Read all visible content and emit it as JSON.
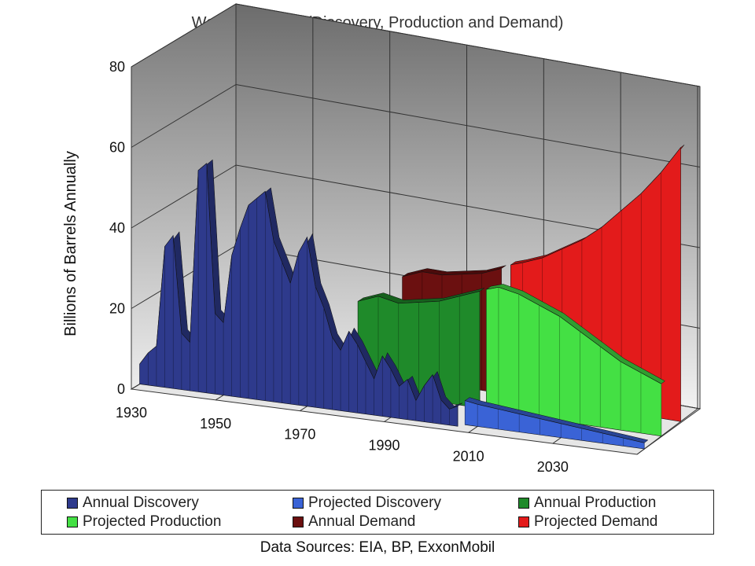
{
  "chart_data": {
    "type": "area",
    "title": "World Overview (Discovery, Production and Demand)",
    "ylabel": "Billions of Barrels Annually",
    "xlabel": "",
    "ylim": [
      0,
      80
    ],
    "yticks": [
      "0",
      "20",
      "40",
      "60",
      "80"
    ],
    "xticks": [
      "1930",
      "1950",
      "1970",
      "1990",
      "2010",
      "2030"
    ],
    "grid": true,
    "legend_position": "bottom",
    "series": [
      {
        "name": "Annual Discovery",
        "color": "#2e3a8c",
        "x": [
          1930,
          1932,
          1934,
          1936,
          1938,
          1940,
          1942,
          1944,
          1946,
          1948,
          1950,
          1952,
          1954,
          1956,
          1958,
          1960,
          1962,
          1964,
          1966,
          1968,
          1970,
          1972,
          1974,
          1976,
          1978,
          1980,
          1982,
          1984,
          1986,
          1988,
          1990,
          1992,
          1994,
          1996,
          1998,
          2000,
          2002,
          2004,
          2006
        ],
        "values": [
          5,
          8,
          10,
          35,
          38,
          14,
          12,
          55,
          57,
          20,
          18,
          35,
          42,
          48,
          50,
          52,
          40,
          35,
          30,
          38,
          42,
          30,
          25,
          18,
          15,
          20,
          17,
          13,
          9,
          15,
          12,
          8,
          10,
          5,
          9,
          12,
          6,
          4,
          5
        ]
      },
      {
        "name": "Projected Discovery",
        "color": "#3a63d6",
        "x": [
          2007,
          2010,
          2015,
          2020,
          2025,
          2030,
          2035,
          2040,
          2045,
          2050
        ],
        "values": [
          6,
          5.5,
          5,
          4.5,
          4,
          3.5,
          3,
          2.5,
          2,
          1.5
        ]
      },
      {
        "name": "Annual Production",
        "color": "#1f8a2a",
        "x": [
          1975,
          1980,
          1985,
          1990,
          1995,
          2000,
          2005
        ],
        "values": [
          22,
          24,
          23,
          24,
          25,
          27,
          29
        ]
      },
      {
        "name": "Projected Production",
        "color": "#44e044",
        "x": [
          2007,
          2010,
          2015,
          2020,
          2025,
          2030,
          2035,
          2040,
          2045,
          2050
        ],
        "values": [
          30,
          31,
          30,
          28,
          26,
          23,
          20,
          17,
          15,
          13
        ]
      },
      {
        "name": "Annual Demand",
        "color": "#6b1010",
        "x": [
          1980,
          1985,
          1990,
          1995,
          2000,
          2005
        ],
        "values": [
          25,
          27,
          27,
          28,
          29,
          31
        ]
      },
      {
        "name": "Projected Demand",
        "color": "#e31b1b",
        "x": [
          2007,
          2010,
          2015,
          2020,
          2025,
          2030,
          2035,
          2040,
          2045,
          2050
        ],
        "values": [
          32,
          33,
          35,
          38,
          41,
          45,
          50,
          55,
          61,
          68
        ]
      }
    ]
  },
  "footer": {
    "sources": "Data Sources: EIA, BP, ExxonMobil"
  }
}
